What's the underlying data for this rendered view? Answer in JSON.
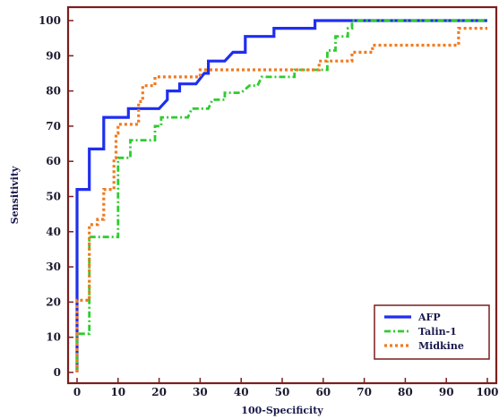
{
  "chart_data": {
    "type": "line",
    "title": "",
    "xlabel": "100-Specificity",
    "ylabel": "Sensitivity",
    "xlim": [
      0,
      100
    ],
    "ylim": [
      0,
      100
    ],
    "xticks": [
      0,
      10,
      20,
      30,
      40,
      50,
      60,
      70,
      80,
      90,
      100
    ],
    "yticks": [
      0,
      10,
      20,
      30,
      40,
      50,
      60,
      70,
      80,
      90,
      100
    ],
    "grid": false,
    "legend_position": "bottom-right",
    "colors": {
      "frame": "#7a1f1f",
      "afp": "#1f2ef0",
      "talin": "#2fcc2f",
      "midkine": "#f07a20"
    },
    "series": [
      {
        "name": "AFP",
        "style": "solid",
        "points": [
          [
            0,
            0
          ],
          [
            0,
            52
          ],
          [
            3,
            52
          ],
          [
            3,
            63.5
          ],
          [
            6.5,
            63.5
          ],
          [
            6.5,
            72.5
          ],
          [
            12.5,
            72.5
          ],
          [
            12.5,
            75
          ],
          [
            20,
            75
          ],
          [
            22,
            77.5
          ],
          [
            22,
            80
          ],
          [
            25,
            80
          ],
          [
            25,
            82
          ],
          [
            29,
            82
          ],
          [
            31,
            85
          ],
          [
            32,
            85
          ],
          [
            32,
            88.5
          ],
          [
            36,
            88.5
          ],
          [
            38,
            91
          ],
          [
            41,
            91
          ],
          [
            41,
            95.5
          ],
          [
            48,
            95.5
          ],
          [
            48,
            97.8
          ],
          [
            58,
            97.8
          ],
          [
            58,
            100
          ],
          [
            100,
            100
          ]
        ]
      },
      {
        "name": "Talin-1",
        "style": "dashdot",
        "points": [
          [
            0,
            0
          ],
          [
            0,
            11
          ],
          [
            3,
            11
          ],
          [
            3,
            38.5
          ],
          [
            10,
            38.5
          ],
          [
            10,
            61
          ],
          [
            13,
            61
          ],
          [
            13,
            66
          ],
          [
            19,
            66
          ],
          [
            19,
            70
          ],
          [
            20.5,
            70
          ],
          [
            20.5,
            72.5
          ],
          [
            27,
            72.5
          ],
          [
            28,
            75
          ],
          [
            32,
            75
          ],
          [
            33,
            77.5
          ],
          [
            36,
            77.5
          ],
          [
            36,
            79.5
          ],
          [
            40,
            79.5
          ],
          [
            42,
            81.5
          ],
          [
            44,
            81.5
          ],
          [
            45,
            84
          ],
          [
            53,
            84
          ],
          [
            53,
            86
          ],
          [
            61,
            86
          ],
          [
            61,
            91.5
          ],
          [
            63,
            91.5
          ],
          [
            63,
            95.5
          ],
          [
            66,
            95.5
          ],
          [
            66,
            97.8
          ],
          [
            67,
            97.8
          ],
          [
            67,
            100
          ],
          [
            100,
            100
          ]
        ]
      },
      {
        "name": "Midkine",
        "style": "dotted",
        "points": [
          [
            0,
            0
          ],
          [
            0,
            20.5
          ],
          [
            3,
            20.5
          ],
          [
            3,
            42
          ],
          [
            5,
            42
          ],
          [
            5,
            43.5
          ],
          [
            6.5,
            43.5
          ],
          [
            6.5,
            52
          ],
          [
            9,
            52
          ],
          [
            9,
            61
          ],
          [
            9.5,
            61
          ],
          [
            9.5,
            68
          ],
          [
            10,
            68
          ],
          [
            10,
            70.5
          ],
          [
            15,
            70.5
          ],
          [
            15,
            77
          ],
          [
            16,
            77
          ],
          [
            16,
            81.5
          ],
          [
            19,
            81.5
          ],
          [
            19,
            84
          ],
          [
            30,
            84
          ],
          [
            30,
            86
          ],
          [
            59,
            86
          ],
          [
            59,
            88.5
          ],
          [
            67,
            88.5
          ],
          [
            67,
            91
          ],
          [
            72,
            91
          ],
          [
            72,
            93
          ],
          [
            93,
            93
          ],
          [
            93,
            97.8
          ],
          [
            100,
            97.8
          ]
        ]
      }
    ]
  }
}
